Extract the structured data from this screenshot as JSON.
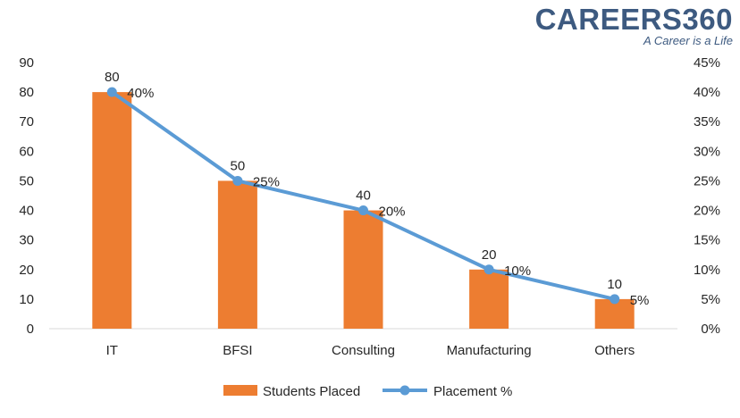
{
  "brand": {
    "name": "CAREERS360",
    "tagline": "A Career is a Life",
    "color": "#3d5a80"
  },
  "chart_data": {
    "type": "bar",
    "categories": [
      "IT",
      "BFSI",
      "Consulting",
      "Manufacturing",
      "Others"
    ],
    "series": [
      {
        "name": "Students Placed",
        "type": "bar",
        "axis": "left",
        "color": "#ed7d31",
        "values": [
          80,
          50,
          40,
          20,
          10
        ],
        "labels": [
          "80",
          "50",
          "40",
          "20",
          "10"
        ]
      },
      {
        "name": "Placement %",
        "type": "line",
        "axis": "right",
        "color": "#5b9bd5",
        "values": [
          40,
          25,
          20,
          10,
          5
        ],
        "labels": [
          "40%",
          "25%",
          "20%",
          "10%",
          "5%"
        ]
      }
    ],
    "y_left": {
      "range": [
        0,
        90
      ],
      "ticks": [
        "0",
        "10",
        "20",
        "30",
        "40",
        "50",
        "60",
        "70",
        "80",
        "90"
      ]
    },
    "y_right": {
      "range": [
        0,
        45
      ],
      "ticks": [
        "0%",
        "5%",
        "10%",
        "15%",
        "20%",
        "25%",
        "30%",
        "35%",
        "40%",
        "45%"
      ]
    },
    "grid": false,
    "legend": "bottom"
  }
}
